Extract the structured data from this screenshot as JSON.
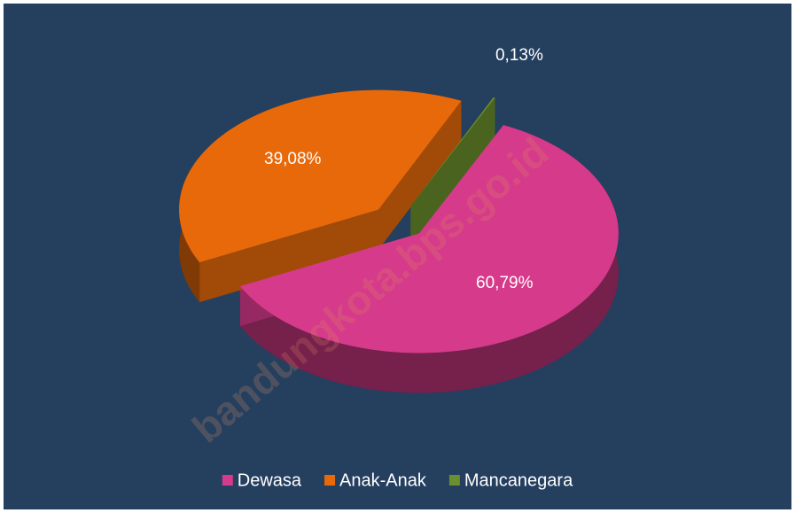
{
  "chart_data": {
    "type": "pie3d",
    "categories": [
      "Dewasa",
      "Anak-Anak",
      "Mancanegara"
    ],
    "values": [
      60.79,
      39.08,
      0.13
    ],
    "value_labels": [
      "60,79%",
      "39,08%",
      "0,13%"
    ],
    "colors": [
      "#d63a8a",
      "#e8690a",
      "#6a8f2e"
    ],
    "legend": "bottom",
    "watermark": "bandungkota.bps.go.id"
  }
}
